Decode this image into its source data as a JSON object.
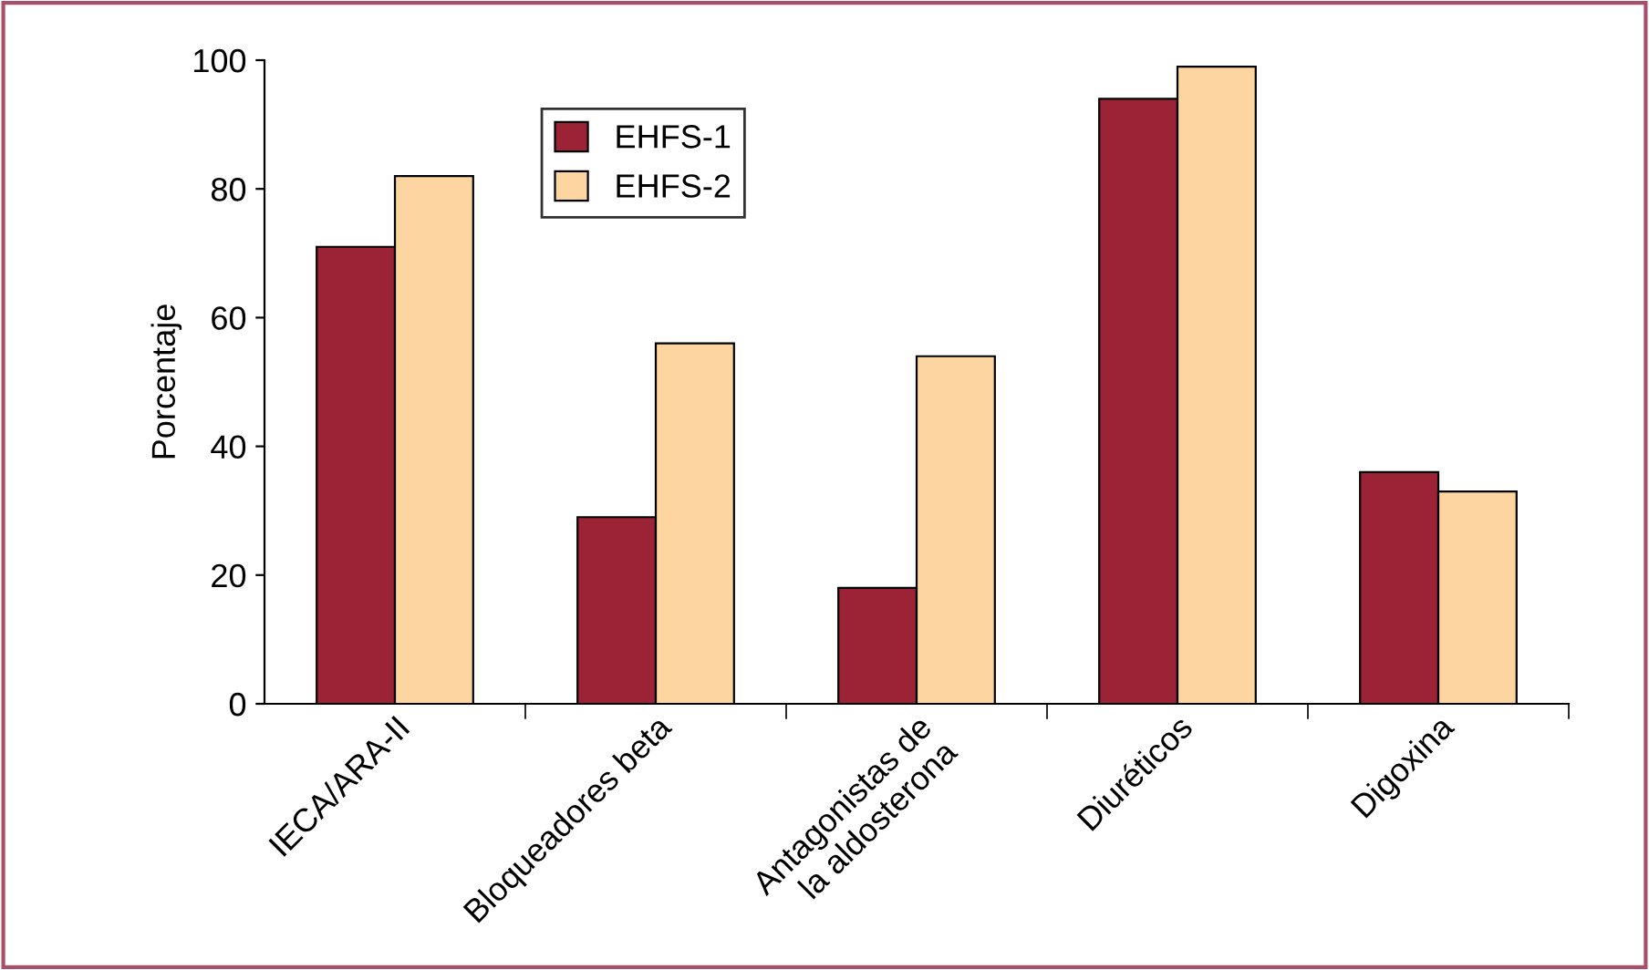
{
  "chart_data": {
    "type": "bar",
    "ylabel": "Porcentaje",
    "categories": [
      "IECA/ARA-II",
      "Bloqueadores beta",
      "Antagonistas de\nla aldosterona",
      "Diuréticos",
      "Digoxina"
    ],
    "series": [
      {
        "name": "EHFS-1",
        "color": "#9b2335",
        "values": [
          71,
          29,
          18,
          94,
          36
        ]
      },
      {
        "name": "EHFS-2",
        "color": "#fdd5a0",
        "values": [
          82,
          56,
          54,
          99,
          33
        ]
      }
    ],
    "ylim": [
      0,
      100
    ],
    "yticks": [
      0,
      20,
      40,
      60,
      80,
      100
    ],
    "grid": false,
    "legend": "top left"
  }
}
